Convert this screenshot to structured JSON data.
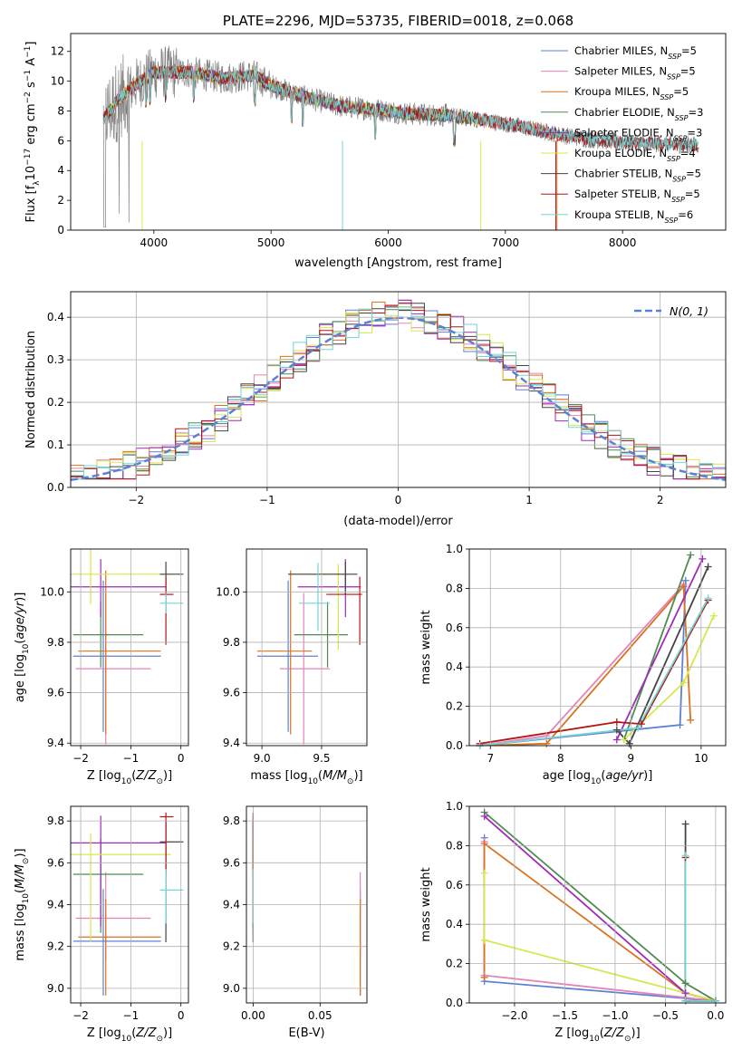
{
  "colors": {
    "observed": "#808080",
    "chabrier_miles": "#5b80d4",
    "salpeter_miles": "#e584b8",
    "kroupa_miles": "#d9731f",
    "chabrier_elodie": "#4f8a55",
    "salpeter_elodie": "#a12ab8",
    "kroupa_elodie": "#d6e84d",
    "chabrier_stelib": "#444444",
    "salpeter_stelib": "#b31616",
    "kroupa_stelib": "#73d6d6"
  },
  "chart_data": [
    {
      "id": "spectrum",
      "type": "line",
      "title": "PLATE=2296, MJD=53735, FIBERID=0018, z=0.068",
      "xlabel": "wavelength [Angstrom, rest frame]",
      "ylabel": "Flux [fλ10⁻¹⁷ erg cm⁻² s⁻¹ A⁻¹]",
      "xlim": [
        3290,
        8880
      ],
      "ylim": [
        0,
        13.2
      ],
      "xticks": [
        "4000",
        "5000",
        "6000",
        "7000",
        "8000"
      ],
      "yticks": [
        "0",
        "2",
        "4",
        "6",
        "8",
        "10",
        "12"
      ],
      "grid": false,
      "legend_position": "top-right",
      "continuum": {
        "x": [
          3570,
          3700,
          3850,
          4000,
          4300,
          4600,
          4850,
          5000,
          5300,
          5600,
          5900,
          6200,
          6500,
          6800,
          7100,
          7400,
          7700,
          8000,
          8300,
          8650
        ],
        "y": [
          7.5,
          8.8,
          9.8,
          10.6,
          10.6,
          10.2,
          10.4,
          9.7,
          8.9,
          8.3,
          8.1,
          7.8,
          7.7,
          7.4,
          7.0,
          6.5,
          6.1,
          5.9,
          5.8,
          5.7
        ]
      },
      "series": [
        {
          "name": "Chabrier MILES, N_SSP=5",
          "legend": "Chabrier MILES, N",
          "sub": "SSP",
          "suffix": "=5",
          "color_key": "chabrier_miles",
          "xmin": 3570,
          "xmax": 7420
        },
        {
          "name": "Salpeter MILES, N_SSP=5",
          "legend": "Salpeter MILES, N",
          "sub": "SSP",
          "suffix": "=5",
          "color_key": "salpeter_miles",
          "xmin": 3570,
          "xmax": 7420
        },
        {
          "name": "Kroupa MILES, N_SSP=5",
          "legend": "Kroupa MILES, N",
          "sub": "SSP",
          "suffix": "=5",
          "color_key": "kroupa_miles",
          "xmin": 3570,
          "xmax": 7420
        },
        {
          "name": "Chabrier ELODIE, N_SSP=3",
          "legend": "Chabrier ELODIE, N",
          "sub": "SSP",
          "suffix": "=3",
          "color_key": "chabrier_elodie",
          "xmin": 3570,
          "xmax": 6800
        },
        {
          "name": "Salpeter ELODIE, N_SSP=3",
          "legend": "Salpeter ELODIE, N",
          "sub": "SSP",
          "suffix": "=3",
          "color_key": "salpeter_elodie",
          "xmin": 3570,
          "xmax": 6800
        },
        {
          "name": "Kroupa ELODIE, N_SSP=4",
          "legend": "Kroupa ELODIE, N",
          "sub": "SSP",
          "suffix": "=4",
          "color_key": "kroupa_elodie",
          "xmin": 3570,
          "xmax": 6800
        },
        {
          "name": "Chabrier STELIB, N_SSP=5",
          "legend": "Chabrier STELIB, N",
          "sub": "SSP",
          "suffix": "=5",
          "color_key": "chabrier_stelib",
          "xmin": 3570,
          "xmax": 8650
        },
        {
          "name": "Salpeter STELIB, N_SSP=5",
          "legend": "Salpeter STELIB, N",
          "sub": "SSP",
          "suffix": "=5",
          "color_key": "salpeter_stelib",
          "xmin": 3570,
          "xmax": 8650
        },
        {
          "name": "Kroupa STELIB, N_SSP=6",
          "legend": "Kroupa STELIB, N",
          "sub": "SSP",
          "suffix": "=6",
          "color_key": "kroupa_stelib",
          "xmin": 3570,
          "xmax": 8650
        }
      ]
    },
    {
      "id": "residuals",
      "type": "line",
      "xlabel": "(data-model)/error",
      "ylabel": "Normed distribution",
      "xlim": [
        -2.5,
        2.5
      ],
      "ylim": [
        0,
        0.46
      ],
      "xticks": [
        "−2",
        "−1",
        "0",
        "1",
        "2"
      ],
      "yticks": [
        "0.0",
        "0.1",
        "0.2",
        "0.3",
        "0.4"
      ],
      "grid": true,
      "legend_position": "top-right",
      "gaussian": {
        "name": "N(0, 1)",
        "mean": 0,
        "sigma": 1,
        "color": "#5b80d4"
      },
      "bin_width": 0.1
    },
    {
      "id": "age_vs_Z",
      "type": "scatter",
      "xlabel": "Z [log10(Z/Z⊙)]",
      "ylabel": "age  [log10(age/yr)]",
      "xlim": [
        -2.2,
        0.15
      ],
      "ylim": [
        9.39,
        10.17
      ],
      "xticks": [
        "−2",
        "−1",
        "0"
      ],
      "yticks": [
        "9.4",
        "9.6",
        "9.8",
        "10.0"
      ],
      "grid": true,
      "points": [
        {
          "color_key": "chabrier_miles",
          "x": -1.55,
          "xerr": [
            0.6,
            1.15
          ],
          "y": 9.745,
          "yerr": [
            0.3,
            0.3
          ]
        },
        {
          "color_key": "salpeter_miles",
          "x": -1.5,
          "xerr": [
            0.6,
            0.9
          ],
          "y": 9.695,
          "yerr": [
            0.3,
            0.3
          ]
        },
        {
          "color_key": "kroupa_miles",
          "x": -1.5,
          "xerr": [
            0.55,
            1.1
          ],
          "y": 9.765,
          "yerr": [
            0.33,
            0.32
          ]
        },
        {
          "color_key": "chabrier_elodie",
          "x": -1.6,
          "xerr": [
            0.55,
            0.85
          ],
          "y": 9.83,
          "yerr": [
            0.13,
            0.13
          ]
        },
        {
          "color_key": "salpeter_elodie",
          "x": -1.6,
          "xerr": [
            0.6,
            1.3
          ],
          "y": 10.02,
          "yerr": [
            0.12,
            0.11
          ]
        },
        {
          "color_key": "kroupa_elodie",
          "x": -1.8,
          "xerr": [
            0.45,
            1.6
          ],
          "y": 10.07,
          "yerr": [
            0.12,
            0.14
          ]
        },
        {
          "color_key": "chabrier_stelib",
          "x": -0.3,
          "xerr": [
            0.12,
            0.35
          ],
          "y": 10.07,
          "yerr": [
            0.08,
            0.05
          ]
        },
        {
          "color_key": "salpeter_stelib",
          "x": -0.3,
          "xerr": [
            0.12,
            0.15
          ],
          "y": 9.99,
          "yerr": [
            0.2,
            0.07
          ]
        },
        {
          "color_key": "kroupa_stelib",
          "x": -0.3,
          "xerr": [
            0.12,
            0.35
          ],
          "y": 9.955,
          "yerr": [
            0.04,
            0.04
          ]
        }
      ]
    },
    {
      "id": "age_vs_mass",
      "type": "scatter",
      "xlabel": "mass [log10(M/M⊙)]",
      "ylabel": "",
      "xlim": [
        8.87,
        9.88
      ],
      "ylim": [
        9.39,
        10.17
      ],
      "xticks": [
        "9.0",
        "9.5"
      ],
      "yticks": [
        "9.4",
        "9.6",
        "9.8",
        "10.0"
      ],
      "grid": true,
      "points": [
        {
          "color_key": "chabrier_miles",
          "x": 9.22,
          "xerr": [
            0.26,
            0.25
          ],
          "y": 9.745,
          "yerr": [
            0.3,
            0.3
          ]
        },
        {
          "color_key": "salpeter_miles",
          "x": 9.35,
          "xerr": [
            0.2,
            0.22
          ],
          "y": 9.695,
          "yerr": [
            0.3,
            0.3
          ]
        },
        {
          "color_key": "kroupa_miles",
          "x": 9.24,
          "xerr": [
            0.28,
            0.18
          ],
          "y": 9.765,
          "yerr": [
            0.33,
            0.32
          ]
        },
        {
          "color_key": "chabrier_elodie",
          "x": 9.55,
          "xerr": [
            0.28,
            0.17
          ],
          "y": 9.83,
          "yerr": [
            0.13,
            0.13
          ]
        },
        {
          "color_key": "salpeter_elodie",
          "x": 9.7,
          "xerr": [
            0.4,
            0.13
          ],
          "y": 10.02,
          "yerr": [
            0.12,
            0.11
          ]
        },
        {
          "color_key": "kroupa_elodie",
          "x": 9.64,
          "xerr": [
            0.42,
            0.1
          ],
          "y": 10.07,
          "yerr": [
            0.3,
            0.04
          ]
        },
        {
          "color_key": "chabrier_stelib",
          "x": 9.7,
          "xerr": [
            0.48,
            0.1
          ],
          "y": 10.07,
          "yerr": [
            0.08,
            0.05
          ]
        },
        {
          "color_key": "salpeter_stelib",
          "x": 9.82,
          "xerr": [
            0.28,
            0.02
          ],
          "y": 9.99,
          "yerr": [
            0.2,
            0.07
          ]
        },
        {
          "color_key": "kroupa_stelib",
          "x": 9.47,
          "xerr": [
            0.16,
            0.1
          ],
          "y": 9.955,
          "yerr": [
            0.11,
            0.16
          ]
        }
      ]
    },
    {
      "id": "mass_weight_vs_age",
      "type": "line",
      "xlabel": "age  [log10(age/yr)]",
      "ylabel": "mass weight",
      "xlim": [
        6.7,
        10.35
      ],
      "ylim": [
        0,
        1
      ],
      "xticks": [
        "7",
        "8",
        "9",
        "10"
      ],
      "yticks": [
        "0.0",
        "0.2",
        "0.4",
        "0.6",
        "0.8",
        "1.0"
      ],
      "grid": true,
      "series": [
        {
          "color_key": "chabrier_miles",
          "x": [
            6.85,
            9.7,
            9.78
          ],
          "y": [
            0.0,
            0.105,
            0.84
          ]
        },
        {
          "color_key": "salpeter_miles",
          "x": [
            6.85,
            7.8,
            9.75
          ],
          "y": [
            0.0,
            0.05,
            0.82
          ]
        },
        {
          "color_key": "kroupa_miles",
          "x": [
            6.85,
            7.8,
            9.75,
            9.85
          ],
          "y": [
            0.0,
            0.01,
            0.81,
            0.13
          ]
        },
        {
          "color_key": "chabrier_elodie",
          "x": [
            8.9,
            9.85
          ],
          "y": [
            0.03,
            0.97
          ]
        },
        {
          "color_key": "salpeter_elodie",
          "x": [
            8.8,
            10.02
          ],
          "y": [
            0.03,
            0.95
          ]
        },
        {
          "color_key": "kroupa_elodie",
          "x": [
            8.9,
            9.75,
            10.18
          ],
          "y": [
            0.03,
            0.32,
            0.66
          ]
        },
        {
          "color_key": "chabrier_stelib",
          "x": [
            8.8,
            8.98,
            10.1
          ],
          "y": [
            0.08,
            0.01,
            0.91
          ]
        },
        {
          "color_key": "salpeter_stelib",
          "x": [
            6.85,
            8.8,
            9.15,
            10.1
          ],
          "y": [
            0.01,
            0.12,
            0.11,
            0.74
          ]
        },
        {
          "color_key": "kroupa_stelib",
          "x": [
            6.85,
            9.1,
            10.1
          ],
          "y": [
            0.0,
            0.09,
            0.75
          ]
        }
      ]
    },
    {
      "id": "mass_vs_Z",
      "type": "scatter",
      "xlabel": "Z [log10(Z/Z⊙)]",
      "ylabel": "mass [log10(M/M⊙)]",
      "xlim": [
        -2.2,
        0.15
      ],
      "ylim": [
        8.93,
        9.87
      ],
      "xticks": [
        "−2",
        "−1",
        "0"
      ],
      "yticks": [
        "9.0",
        "9.2",
        "9.4",
        "9.6",
        "9.8"
      ],
      "grid": true,
      "points": [
        {
          "color_key": "chabrier_miles",
          "x": -1.55,
          "xerr": [
            0.6,
            1.15
          ],
          "y": 9.225,
          "yerr": [
            0.26,
            0.25
          ]
        },
        {
          "color_key": "salpeter_miles",
          "x": -1.5,
          "xerr": [
            0.6,
            0.9
          ],
          "y": 9.335,
          "yerr": [
            0.2,
            0.22
          ]
        },
        {
          "color_key": "kroupa_miles",
          "x": -1.5,
          "xerr": [
            0.55,
            1.1
          ],
          "y": 9.245,
          "yerr": [
            0.28,
            0.18
          ]
        },
        {
          "color_key": "chabrier_elodie",
          "x": -1.6,
          "xerr": [
            0.55,
            0.85
          ],
          "y": 9.545,
          "yerr": [
            0.28,
            0.17
          ]
        },
        {
          "color_key": "salpeter_elodie",
          "x": -1.6,
          "xerr": [
            0.6,
            1.3
          ],
          "y": 9.695,
          "yerr": [
            0.4,
            0.13
          ]
        },
        {
          "color_key": "kroupa_elodie",
          "x": -1.8,
          "xerr": [
            0.45,
            1.6
          ],
          "y": 9.64,
          "yerr": [
            0.42,
            0.1
          ]
        },
        {
          "color_key": "chabrier_stelib",
          "x": -0.3,
          "xerr": [
            0.12,
            0.35
          ],
          "y": 9.7,
          "yerr": [
            0.48,
            0.1
          ]
        },
        {
          "color_key": "salpeter_stelib",
          "x": -0.3,
          "xerr": [
            0.12,
            0.15
          ],
          "y": 9.82,
          "yerr": [
            0.28,
            0.02
          ]
        },
        {
          "color_key": "kroupa_stelib",
          "x": -0.3,
          "xerr": [
            0.12,
            0.35
          ],
          "y": 9.47,
          "yerr": [
            0.16,
            0.1
          ]
        }
      ]
    },
    {
      "id": "mass_vs_ebv",
      "type": "scatter",
      "xlabel": "E(B-V)",
      "ylabel": "",
      "xlim": [
        -0.005,
        0.085
      ],
      "ylim": [
        8.93,
        9.87
      ],
      "xticks": [
        "0.00",
        "0.05"
      ],
      "yticks": [
        "9.0",
        "9.2",
        "9.4",
        "9.6",
        "9.8"
      ],
      "grid": true,
      "points": [
        {
          "color_key": "chabrier_miles",
          "x": 0.08,
          "xerr": [
            0.0,
            0.0
          ],
          "y": 9.225,
          "yerr": [
            0.26,
            0.25
          ]
        },
        {
          "color_key": "salpeter_miles",
          "x": 0.08,
          "xerr": [
            0.0,
            0.0
          ],
          "y": 9.335,
          "yerr": [
            0.2,
            0.22
          ]
        },
        {
          "color_key": "kroupa_miles",
          "x": 0.08,
          "xerr": [
            0.0,
            0.0
          ],
          "y": 9.245,
          "yerr": [
            0.28,
            0.18
          ]
        },
        {
          "color_key": "chabrier_elodie",
          "x": 0.0,
          "xerr": [
            0.0,
            0.0
          ],
          "y": 9.545,
          "yerr": [
            0.28,
            0.17
          ]
        },
        {
          "color_key": "salpeter_elodie",
          "x": 0.0,
          "xerr": [
            0.0,
            0.0
          ],
          "y": 9.695,
          "yerr": [
            0.4,
            0.13
          ]
        },
        {
          "color_key": "kroupa_elodie",
          "x": 0.0,
          "xerr": [
            0.0,
            0.0
          ],
          "y": 9.64,
          "yerr": [
            0.42,
            0.1
          ]
        },
        {
          "color_key": "chabrier_stelib",
          "x": 0.0,
          "xerr": [
            0.0,
            0.0
          ],
          "y": 9.7,
          "yerr": [
            0.48,
            0.1
          ]
        },
        {
          "color_key": "salpeter_stelib",
          "x": 0.0,
          "xerr": [
            0.0,
            0.0
          ],
          "y": 9.82,
          "yerr": [
            0.28,
            0.02
          ]
        },
        {
          "color_key": "kroupa_stelib",
          "x": 0.0,
          "xerr": [
            0.0,
            0.0
          ],
          "y": 9.47,
          "yerr": [
            0.16,
            0.1
          ]
        }
      ]
    },
    {
      "id": "mass_weight_vs_Z",
      "type": "line",
      "xlabel": "Z [log10(Z/Z⊙)]",
      "ylabel": "mass weight",
      "xlim": [
        -2.45,
        0.1
      ],
      "ylim": [
        0,
        1
      ],
      "xticks": [
        "−2.0",
        "−1.5",
        "−1.0",
        "−0.5",
        "0.0"
      ],
      "yticks": [
        "0.0",
        "0.2",
        "0.4",
        "0.6",
        "0.8",
        "1.0"
      ],
      "grid": true,
      "series": [
        {
          "color_key": "chabrier_miles",
          "x": [
            -2.3,
            -2.3,
            0.0
          ],
          "y": [
            0.84,
            0.11,
            0.01
          ]
        },
        {
          "color_key": "salpeter_miles",
          "x": [
            -2.3,
            -2.3,
            0.0
          ],
          "y": [
            0.82,
            0.14,
            0.01
          ]
        },
        {
          "color_key": "kroupa_miles",
          "x": [
            -2.3,
            -2.3,
            -0.3,
            0.0
          ],
          "y": [
            0.13,
            0.81,
            0.05,
            0.01
          ]
        },
        {
          "color_key": "chabrier_elodie",
          "x": [
            -2.3,
            -0.3,
            0.0
          ],
          "y": [
            0.97,
            0.1,
            0.01
          ]
        },
        {
          "color_key": "salpeter_elodie",
          "x": [
            -2.3,
            -0.3,
            0.0
          ],
          "y": [
            0.95,
            0.05,
            0.01
          ]
        },
        {
          "color_key": "kroupa_elodie",
          "x": [
            -2.3,
            -2.3,
            0.0
          ],
          "y": [
            0.66,
            0.32,
            0.01
          ]
        },
        {
          "color_key": "chabrier_stelib",
          "x": [
            -0.3,
            -0.3,
            0.0
          ],
          "y": [
            0.91,
            0.01,
            0.01
          ]
        },
        {
          "color_key": "salpeter_stelib",
          "x": [
            -0.3,
            -0.3,
            0.0
          ],
          "y": [
            0.74,
            0.01,
            0.01
          ]
        },
        {
          "color_key": "kroupa_stelib",
          "x": [
            -0.3,
            -0.3,
            0.0
          ],
          "y": [
            0.75,
            0.01,
            0.01
          ]
        }
      ]
    }
  ]
}
